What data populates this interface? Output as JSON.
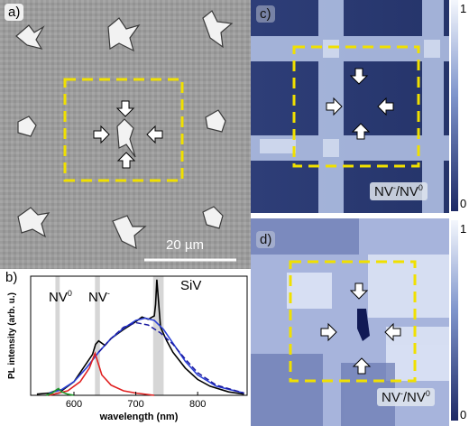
{
  "panel_a": {
    "label": "a)",
    "scalebar": "20 µm"
  },
  "panel_b": {
    "label": "b)",
    "peaks": {
      "nv0": "NV",
      "nv0_sup": "0",
      "nvm": "NV",
      "nvm_sup": "-",
      "siv": "SiV"
    },
    "chart_data": {
      "type": "line",
      "xlabel": "wavelength (nm)",
      "ylabel": "PL intensity (arb. u.)",
      "xlim": [
        530,
        880
      ],
      "ylim": [
        0,
        1.05
      ],
      "xticks": [
        "600",
        "700",
        "800"
      ],
      "series": [
        {
          "color": "#000000",
          "x": [
            540,
            560,
            575,
            580,
            600,
            620,
            630,
            635,
            640,
            650,
            660,
            680,
            700,
            710,
            720,
            730,
            732,
            734,
            740,
            750,
            760,
            780,
            800,
            820,
            850,
            875
          ],
          "y": [
            0.01,
            0.02,
            0.05,
            0.04,
            0.12,
            0.28,
            0.36,
            0.45,
            0.48,
            0.44,
            0.5,
            0.58,
            0.65,
            0.69,
            0.67,
            0.7,
            0.8,
            1.02,
            0.6,
            0.48,
            0.38,
            0.24,
            0.14,
            0.08,
            0.03,
            0.01
          ]
        },
        {
          "color": "#2a3fd6",
          "x": [
            560,
            580,
            600,
            620,
            640,
            660,
            680,
            700,
            715,
            730,
            745,
            760,
            780,
            800,
            830,
            875
          ],
          "y": [
            0.02,
            0.05,
            0.12,
            0.24,
            0.38,
            0.5,
            0.59,
            0.66,
            0.68,
            0.66,
            0.58,
            0.46,
            0.3,
            0.18,
            0.08,
            0.02
          ]
        },
        {
          "color": "#e02020",
          "x": [
            560,
            590,
            610,
            625,
            634,
            637,
            645,
            660,
            680,
            700,
            730
          ],
          "y": [
            0.0,
            0.04,
            0.12,
            0.24,
            0.37,
            0.32,
            0.18,
            0.09,
            0.04,
            0.02,
            0.0
          ]
        },
        {
          "color": "#1f9a2a",
          "x": [
            555,
            565,
            572,
            575,
            580,
            590,
            600
          ],
          "y": [
            0.0,
            0.02,
            0.05,
            0.06,
            0.03,
            0.01,
            0.0
          ]
        },
        {
          "color": "#1a1aa0",
          "dashed": true,
          "x": [
            640,
            660,
            680,
            700,
            720,
            740,
            760,
            780,
            800,
            830,
            875
          ],
          "y": [
            0.38,
            0.5,
            0.6,
            0.64,
            0.62,
            0.55,
            0.45,
            0.32,
            0.2,
            0.09,
            0.02
          ]
        }
      ],
      "highlight_bands": [
        [
          570,
          577
        ],
        [
          634,
          642
        ],
        [
          728,
          745
        ]
      ]
    }
  },
  "panel_c": {
    "label": "c)",
    "ratio": "NV",
    "ratio_sup1": "-",
    "ratio_sep": "/NV",
    "ratio_sup2": "0"
  },
  "panel_d": {
    "label": "d)",
    "ratio": "NV",
    "ratio_sup1": "-",
    "ratio_sep": "/NV",
    "ratio_sup2": "0"
  },
  "colorbar": {
    "top": "1",
    "bottom": "0"
  }
}
